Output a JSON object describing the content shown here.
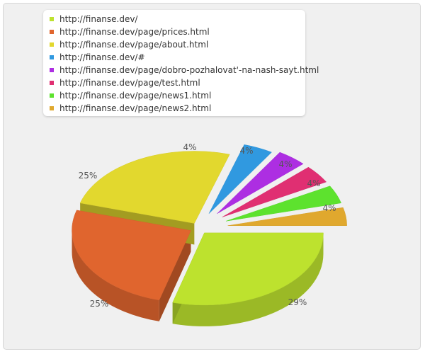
{
  "chart_data": {
    "type": "pie",
    "title": "",
    "categories": [
      "http://finanse.dev/",
      "http://finanse.dev/page/prices.html",
      "http://finanse.dev/page/about.html",
      "http://finanse.dev/#",
      "http://finanse.dev/page/dobro-pozhalovat'-na-nash-sayt.html",
      "http://finanse.dev/page/test.html",
      "http://finanse.dev/page/news1.html",
      "http://finanse.dev/page/news2.html"
    ],
    "values": [
      29,
      25,
      25,
      4,
      4,
      4,
      4,
      4
    ],
    "value_labels": [
      "29%",
      "25%",
      "25%",
      "4%",
      "4%",
      "4%",
      "4%",
      "4%"
    ],
    "colors": [
      "#bde22e",
      "#e0652e",
      "#e2d82e",
      "#3099e0",
      "#ad2ee2",
      "#e02f72",
      "#5de22e",
      "#e0a82e"
    ],
    "legend_position": "top-left",
    "style": "3d-exploded"
  }
}
